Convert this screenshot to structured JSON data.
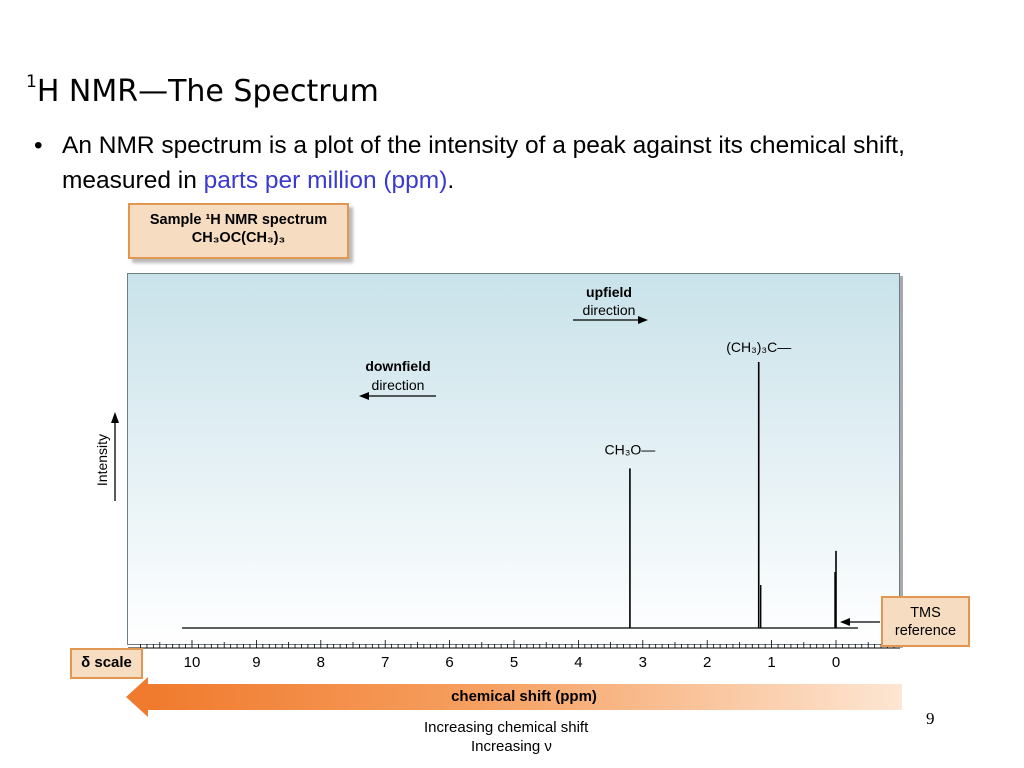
{
  "slide": {
    "title_sup": "1",
    "title_text": "H NMR—The Spectrum",
    "bullet_char": "•",
    "bullet_text": "An NMR spectrum is a plot of the intensity of a peak against its chemical shift, measured in ",
    "bullet_highlight": "parts per million (ppm)",
    "bullet_end": ".",
    "page_number": "9",
    "accent_color": "#3a3ad0"
  },
  "sample": {
    "line1": "Sample ¹H NMR spectrum",
    "line2": "CH₃OC(CH₃)₃"
  },
  "annotations": {
    "upfield_bold": "upfield",
    "upfield_sub": "direction",
    "downfield_bold": "downfield",
    "downfield_sub": "direction",
    "intensity": "Intensity",
    "tms_line1": "TMS",
    "tms_line2": "reference",
    "delta_scale": "δ scale",
    "chemical_shift": "chemical shift (ppm)",
    "increasing_shift": "Increasing chemical shift",
    "increasing_nu": "Increasing ν"
  },
  "chart_data": {
    "type": "line",
    "xlabel": "chemical shift (ppm)",
    "ylabel": "Intensity",
    "x_reversed": true,
    "xlim": [
      10.2,
      -0.9
    ],
    "ylim": [
      0,
      1
    ],
    "tick_labels": [
      "10",
      "9",
      "8",
      "7",
      "6",
      "5",
      "4",
      "3",
      "2",
      "1",
      "0"
    ],
    "peaks": [
      {
        "shift": 3.2,
        "intensity": 0.6,
        "label": "CH₃O—"
      },
      {
        "shift": 1.2,
        "intensity": 1.0,
        "label": "(CH₃)₃C—"
      },
      {
        "shift": 0.0,
        "intensity": 0.29,
        "label": "TMS reference"
      }
    ]
  }
}
